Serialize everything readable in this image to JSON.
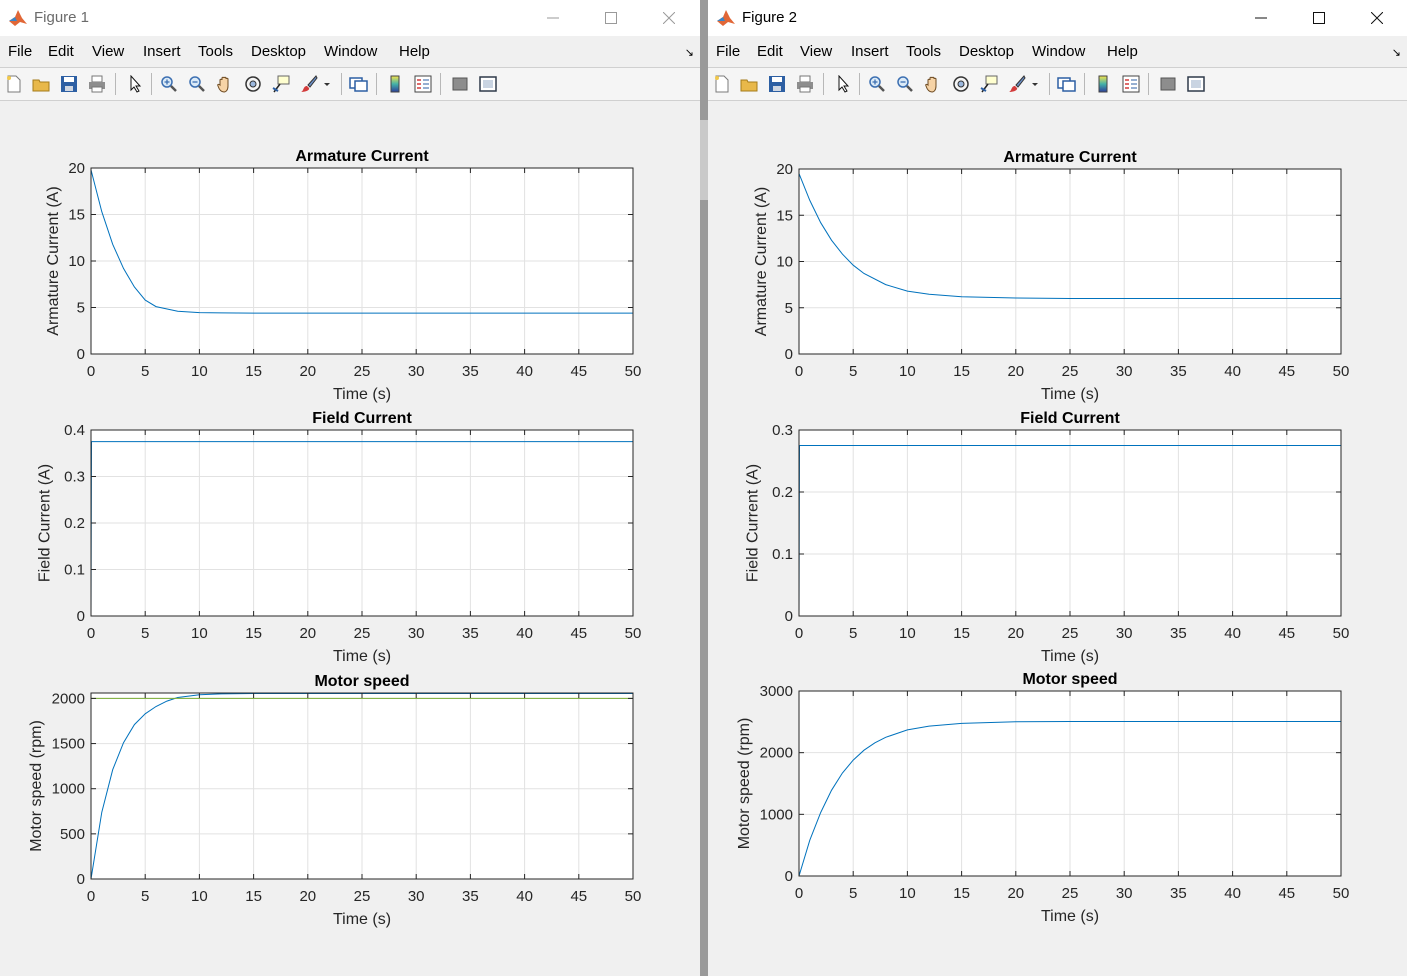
{
  "windows": [
    {
      "title": "Figure 1",
      "menu": [
        "File",
        "Edit",
        "View",
        "Insert",
        "Tools",
        "Desktop",
        "Window",
        "Help"
      ],
      "charts": [
        {
          "type": "line",
          "title": "Armature Current",
          "xlabel": "Time (s)",
          "ylabel": "Armature Current (A)",
          "xlim": [
            0,
            50
          ],
          "ylim": [
            0,
            20
          ],
          "xticks": [
            0,
            5,
            10,
            15,
            20,
            25,
            30,
            35,
            40,
            45,
            50
          ],
          "yticks": [
            0,
            5,
            10,
            15,
            20
          ],
          "grid": true,
          "series": [
            {
              "x": [
                0,
                0,
                1,
                2,
                3,
                4,
                5,
                6,
                8,
                10,
                12,
                15,
                20,
                30,
                40,
                50
              ],
              "y": [
                0,
                19.8,
                15.3,
                11.8,
                9.2,
                7.2,
                5.8,
                5.1,
                4.6,
                4.45,
                4.42,
                4.4,
                4.4,
                4.4,
                4.4,
                4.4
              ]
            }
          ]
        },
        {
          "type": "line",
          "title": "Field Current",
          "xlabel": "Time (s)",
          "ylabel": "Field Current (A)",
          "xlim": [
            0,
            50
          ],
          "ylim": [
            0,
            0.4
          ],
          "xticks": [
            0,
            5,
            10,
            15,
            20,
            25,
            30,
            35,
            40,
            45,
            50
          ],
          "yticks": [
            0,
            0.1,
            0.2,
            0.3,
            0.4
          ],
          "grid": true,
          "series": [
            {
              "x": [
                0,
                0.05,
                50
              ],
              "y": [
                0,
                0.375,
                0.375
              ]
            }
          ]
        },
        {
          "type": "line",
          "title": "Motor speed",
          "xlabel": "Time (s)",
          "ylabel": "Motor speed (rpm)",
          "xlim": [
            0,
            50
          ],
          "ylim": [
            0,
            2060
          ],
          "xticks": [
            0,
            5,
            10,
            15,
            20,
            25,
            30,
            35,
            40,
            45,
            50
          ],
          "yticks": [
            0,
            500,
            1000,
            1500,
            2000
          ],
          "grid": true,
          "series": [
            {
              "x": [
                0,
                1,
                2,
                3,
                4,
                5,
                6,
                7,
                8,
                10,
                12,
                15,
                20,
                30,
                40,
                50
              ],
              "y": [
                0,
                740,
                1210,
                1510,
                1710,
                1830,
                1910,
                1970,
                2010,
                2040,
                2050,
                2055,
                2055,
                2055,
                2055,
                2055
              ]
            },
            {
              "x": [
                0,
                50
              ],
              "y": [
                2000,
                2000
              ],
              "color": "#77ac30"
            }
          ]
        }
      ]
    },
    {
      "title": "Figure 2",
      "menu": [
        "File",
        "Edit",
        "View",
        "Insert",
        "Tools",
        "Desktop",
        "Window",
        "Help"
      ],
      "charts": [
        {
          "type": "line",
          "title": "Armature Current",
          "xlabel": "Time (s)",
          "ylabel": "Armature Current (A)",
          "xlim": [
            0,
            50
          ],
          "ylim": [
            0,
            20
          ],
          "xticks": [
            0,
            5,
            10,
            15,
            20,
            25,
            30,
            35,
            40,
            45,
            50
          ],
          "yticks": [
            0,
            5,
            10,
            15,
            20
          ],
          "grid": true,
          "series": [
            {
              "x": [
                0,
                0,
                1,
                2,
                3,
                4,
                5,
                6,
                8,
                10,
                12,
                15,
                20,
                25,
                30,
                40,
                50
              ],
              "y": [
                0,
                19.5,
                16.6,
                14.2,
                12.3,
                10.8,
                9.6,
                8.7,
                7.5,
                6.8,
                6.45,
                6.2,
                6.05,
                6.0,
                6.0,
                6.0,
                6.0
              ]
            }
          ]
        },
        {
          "type": "line",
          "title": "Field Current",
          "xlabel": "Time (s)",
          "ylabel": "Field Current (A)",
          "xlim": [
            0,
            50
          ],
          "ylim": [
            0,
            0.3
          ],
          "xticks": [
            0,
            5,
            10,
            15,
            20,
            25,
            30,
            35,
            40,
            45,
            50
          ],
          "yticks": [
            0,
            0.1,
            0.2,
            0.3
          ],
          "grid": true,
          "series": [
            {
              "x": [
                0,
                0.05,
                50
              ],
              "y": [
                0,
                0.275,
                0.275
              ]
            }
          ]
        },
        {
          "type": "line",
          "title": "Motor speed",
          "xlabel": "Time (s)",
          "ylabel": "Motor speed (rpm)",
          "xlim": [
            0,
            50
          ],
          "ylim": [
            0,
            3000
          ],
          "xticks": [
            0,
            5,
            10,
            15,
            20,
            25,
            30,
            35,
            40,
            45,
            50
          ],
          "yticks": [
            0,
            1000,
            2000,
            3000
          ],
          "grid": true,
          "series": [
            {
              "x": [
                0,
                1,
                2,
                3,
                4,
                5,
                6,
                7,
                8,
                10,
                12,
                15,
                20,
                25,
                30,
                40,
                50
              ],
              "y": [
                0,
                580,
                1030,
                1390,
                1670,
                1880,
                2040,
                2160,
                2250,
                2370,
                2430,
                2475,
                2500,
                2505,
                2505,
                2505,
                2505
              ]
            }
          ]
        }
      ]
    }
  ],
  "colors": {
    "line": "#0072bd",
    "grid": "#e2e2e2",
    "axis": "#262626"
  },
  "toolbar_icons": [
    "new-figure-icon",
    "open-file-icon",
    "save-icon",
    "print-icon",
    "edit-plot-icon",
    "zoom-in-icon",
    "zoom-out-icon",
    "pan-icon",
    "rotate-3d-icon",
    "data-cursor-icon",
    "brush-icon",
    "link-plot-icon",
    "colorbar-icon",
    "legend-icon",
    "hide-plot-tools-icon",
    "show-plot-tools-icon"
  ]
}
